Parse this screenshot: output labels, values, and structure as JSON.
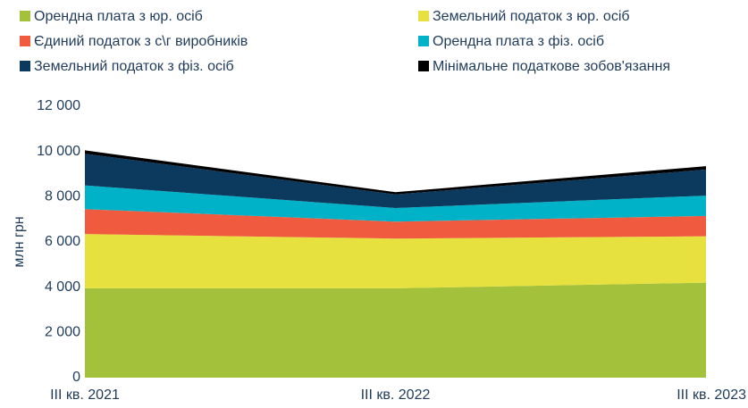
{
  "chart_data": {
    "type": "stacked_area",
    "y_label": "млн грн",
    "categories": [
      "III кв. 2021",
      "III кв. 2022",
      "III кв. 2023"
    ],
    "series": [
      {
        "name": "Орендна плата з юр. осіб",
        "color": "#a3c13a",
        "values": [
          3950,
          3950,
          4200
        ]
      },
      {
        "name": "Земельний податок з юр. осіб",
        "color": "#e6e13e",
        "values": [
          2400,
          2200,
          2050
        ]
      },
      {
        "name": "Єдиний податок з с\\г виробників",
        "color": "#f05a3f",
        "values": [
          1100,
          750,
          900
        ]
      },
      {
        "name": "Орендна плата з фіз. осіб",
        "color": "#00b2c8",
        "values": [
          1050,
          600,
          900
        ]
      },
      {
        "name": "Земельний податок з фіз. осіб",
        "color": "#0b3a5e",
        "values": [
          1400,
          600,
          1150
        ]
      },
      {
        "name": "Мінімальне податкове зобов'язання",
        "color": "#000000",
        "values": [
          150,
          100,
          150
        ]
      }
    ],
    "ylim": [
      0,
      12000
    ],
    "yticks": [
      0,
      {
        "value": 2000,
        "label": "2 000"
      },
      {
        "value": 4000,
        "label": "4 000"
      },
      {
        "value": 6000,
        "label": "6 000"
      },
      {
        "value": 8000,
        "label": "8 000"
      },
      {
        "value": 10000,
        "label": "10 000"
      },
      {
        "value": 12000,
        "label": "12 000"
      }
    ],
    "grid": false
  }
}
